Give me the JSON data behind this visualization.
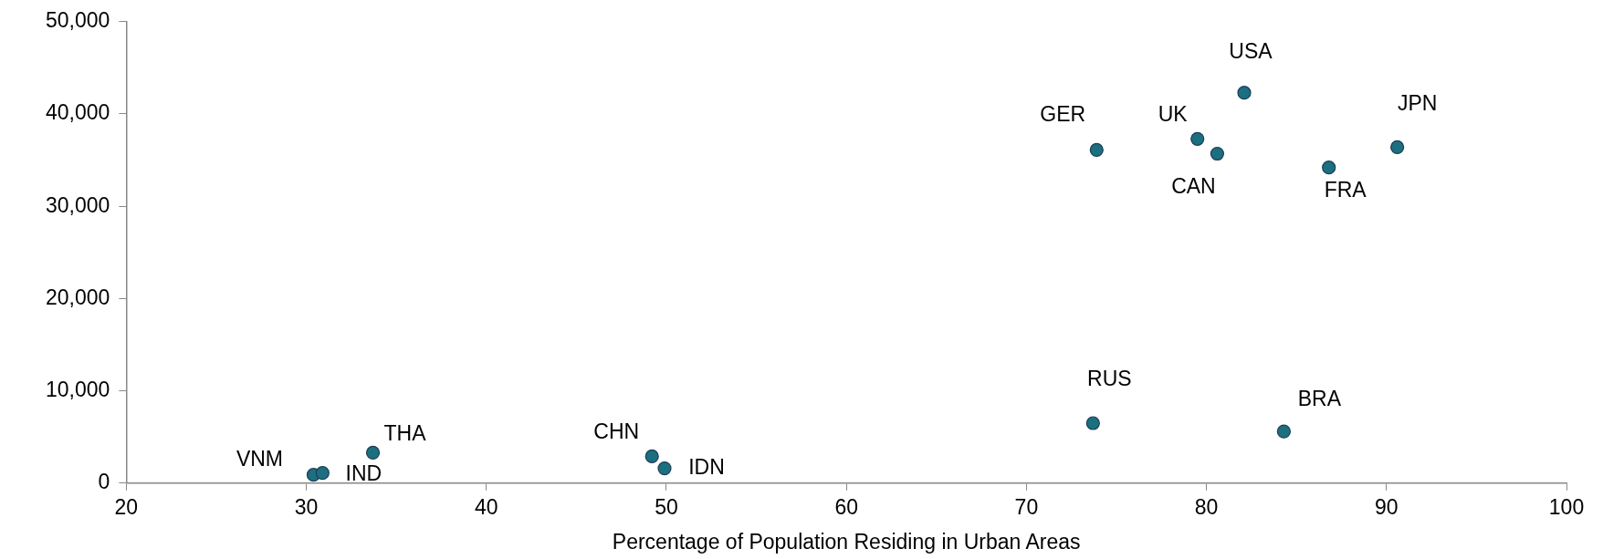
{
  "chart_data": {
    "type": "scatter",
    "xlabel": "Percentage of Population Residing in Urban Areas",
    "series": [
      {
        "color": "#1b6f7e",
        "x": [
          30.4,
          30.9,
          33.7,
          49.2,
          49.9,
          73.7,
          84.3,
          73.9,
          79.5,
          80.6,
          82.1,
          86.8,
          90.6
        ],
        "values": [
          900,
          1100,
          3300,
          2900,
          1600,
          6500,
          5600,
          36100,
          37300,
          35700,
          42300,
          34200,
          36400
        ]
      }
    ],
    "xlim": [
      20,
      100
    ],
    "xticks": [
      20,
      30,
      40,
      50,
      60,
      70,
      80,
      90,
      100
    ],
    "ylim": [
      0,
      50000
    ],
    "yticks": [
      {
        "value": 0,
        "label": "0"
      },
      {
        "value": 10000,
        "label": "10,000"
      },
      {
        "value": 20000,
        "label": "20,000"
      },
      {
        "value": 30000,
        "label": "30,000"
      },
      {
        "value": 40000,
        "label": "40,000"
      },
      {
        "value": 50000,
        "label": "50,000"
      }
    ],
    "grid": false,
    "legend": false,
    "marker": "circle",
    "annotations": [
      {
        "text": "VNM",
        "x": 30.4,
        "y": 900
      },
      {
        "text": "IND",
        "x": 30.9,
        "y": 1100
      },
      {
        "text": "THA",
        "x": 33.7,
        "y": 3300
      },
      {
        "text": "CHN",
        "x": 49.2,
        "y": 2900
      },
      {
        "text": "IDN",
        "x": 49.9,
        "y": 1600
      },
      {
        "text": "RUS",
        "x": 73.7,
        "y": 6500
      },
      {
        "text": "BRA",
        "x": 84.3,
        "y": 5600
      },
      {
        "text": "GER",
        "x": 73.9,
        "y": 36100
      },
      {
        "text": "UK",
        "x": 79.5,
        "y": 37300
      },
      {
        "text": "CAN",
        "x": 80.6,
        "y": 35700
      },
      {
        "text": "USA",
        "x": 82.1,
        "y": 42300
      },
      {
        "text": "FRA",
        "x": 86.8,
        "y": 34200
      },
      {
        "text": "JPN",
        "x": 90.6,
        "y": 36400
      }
    ]
  }
}
